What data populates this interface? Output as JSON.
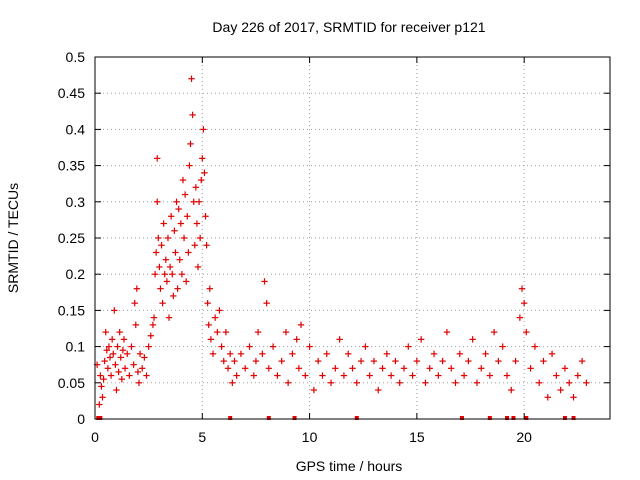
{
  "chart_data": {
    "type": "scatter",
    "title": "Day 226 of 2017, SRMTID for receiver p121",
    "xlabel": "GPS time / hours",
    "ylabel": "SRMTID / TECUs",
    "xlim": [
      0,
      24
    ],
    "ylim": [
      0,
      0.5
    ],
    "xticks": [
      0,
      5,
      10,
      15,
      20
    ],
    "xtick_labels": [
      "0",
      "5",
      "10",
      "15",
      "20"
    ],
    "yticks": [
      0,
      0.05,
      0.1,
      0.15,
      0.2,
      0.25,
      0.3,
      0.35,
      0.4,
      0.45,
      0.5
    ],
    "ytick_labels": [
      "0",
      "0.05",
      "0.1",
      "0.15",
      "0.2",
      "0.25",
      "0.3",
      "0.35",
      "0.4",
      "0.45",
      "0.5"
    ],
    "grid": true,
    "marker": "+",
    "color": "#e00000",
    "series": [
      {
        "name": "SRMTID",
        "points": [
          [
            0.1,
            0.075
          ],
          [
            0.2,
            0.02
          ],
          [
            0.25,
            0.06
          ],
          [
            0.3,
            0.045
          ],
          [
            0.35,
            0.03
          ],
          [
            0.4,
            0.055
          ],
          [
            0.45,
            0.08
          ],
          [
            0.5,
            0.12
          ],
          [
            0.55,
            0.095
          ],
          [
            0.6,
            0.07
          ],
          [
            0.65,
            0.1
          ],
          [
            0.7,
            0.085
          ],
          [
            0.75,
            0.06
          ],
          [
            0.8,
            0.11
          ],
          [
            0.85,
            0.09
          ],
          [
            0.9,
            0.15
          ],
          [
            0.95,
            0.075
          ],
          [
            1.0,
            0.04
          ],
          [
            1.05,
            0.1
          ],
          [
            1.1,
            0.065
          ],
          [
            1.15,
            0.12
          ],
          [
            1.2,
            0.085
          ],
          [
            1.25,
            0.055
          ],
          [
            1.3,
            0.095
          ],
          [
            1.35,
            0.11
          ],
          [
            1.4,
            0.07
          ],
          [
            1.5,
            0.09
          ],
          [
            1.6,
            0.06
          ],
          [
            1.7,
            0.1
          ],
          [
            1.8,
            0.075
          ],
          [
            1.85,
            0.16
          ],
          [
            1.9,
            0.13
          ],
          [
            1.95,
            0.18
          ],
          [
            2.0,
            0.065
          ],
          [
            2.05,
            0.05
          ],
          [
            2.1,
            0.09
          ],
          [
            2.2,
            0.07
          ],
          [
            2.3,
            0.085
          ],
          [
            2.4,
            0.06
          ],
          [
            2.5,
            0.1
          ],
          [
            2.6,
            0.115
          ],
          [
            2.7,
            0.13
          ],
          [
            2.75,
            0.14
          ],
          [
            2.8,
            0.2
          ],
          [
            2.85,
            0.23
          ],
          [
            2.9,
            0.3
          ],
          [
            2.9,
            0.36
          ],
          [
            2.95,
            0.25
          ],
          [
            3.0,
            0.21
          ],
          [
            3.05,
            0.18
          ],
          [
            3.1,
            0.24
          ],
          [
            3.15,
            0.16
          ],
          [
            3.2,
            0.27
          ],
          [
            3.25,
            0.2
          ],
          [
            3.3,
            0.22
          ],
          [
            3.35,
            0.19
          ],
          [
            3.4,
            0.25
          ],
          [
            3.45,
            0.14
          ],
          [
            3.5,
            0.21
          ],
          [
            3.55,
            0.28
          ],
          [
            3.6,
            0.2
          ],
          [
            3.65,
            0.17
          ],
          [
            3.7,
            0.26
          ],
          [
            3.75,
            0.23
          ],
          [
            3.8,
            0.3
          ],
          [
            3.85,
            0.18
          ],
          [
            3.9,
            0.29
          ],
          [
            3.95,
            0.22
          ],
          [
            4.0,
            0.27
          ],
          [
            4.05,
            0.2
          ],
          [
            4.1,
            0.33
          ],
          [
            4.15,
            0.25
          ],
          [
            4.2,
            0.31
          ],
          [
            4.25,
            0.19
          ],
          [
            4.3,
            0.28
          ],
          [
            4.35,
            0.23
          ],
          [
            4.4,
            0.35
          ],
          [
            4.45,
            0.38
          ],
          [
            4.5,
            0.47
          ],
          [
            4.55,
            0.42
          ],
          [
            4.6,
            0.3
          ],
          [
            4.65,
            0.24
          ],
          [
            4.7,
            0.32
          ],
          [
            4.75,
            0.27
          ],
          [
            4.8,
            0.21
          ],
          [
            4.85,
            0.3
          ],
          [
            4.9,
            0.25
          ],
          [
            4.95,
            0.33
          ],
          [
            5.0,
            0.36
          ],
          [
            5.05,
            0.4
          ],
          [
            5.1,
            0.34
          ],
          [
            5.15,
            0.28
          ],
          [
            5.2,
            0.24
          ],
          [
            5.25,
            0.16
          ],
          [
            5.3,
            0.13
          ],
          [
            5.35,
            0.18
          ],
          [
            5.4,
            0.11
          ],
          [
            5.5,
            0.09
          ],
          [
            5.6,
            0.14
          ],
          [
            5.7,
            0.12
          ],
          [
            5.8,
            0.15
          ],
          [
            5.9,
            0.1
          ],
          [
            6.0,
            0.08
          ],
          [
            6.1,
            0.12
          ],
          [
            6.2,
            0.07
          ],
          [
            6.3,
            0.09
          ],
          [
            6.4,
            0.05
          ],
          [
            6.5,
            0.08
          ],
          [
            6.6,
            0.06
          ],
          [
            6.8,
            0.09
          ],
          [
            7.0,
            0.07
          ],
          [
            7.2,
            0.1
          ],
          [
            7.4,
            0.06
          ],
          [
            7.5,
            0.08
          ],
          [
            7.6,
            0.12
          ],
          [
            7.8,
            0.09
          ],
          [
            7.9,
            0.19
          ],
          [
            8.0,
            0.16
          ],
          [
            8.1,
            0.07
          ],
          [
            8.3,
            0.1
          ],
          [
            8.5,
            0.06
          ],
          [
            8.7,
            0.08
          ],
          [
            8.9,
            0.12
          ],
          [
            9.0,
            0.05
          ],
          [
            9.2,
            0.09
          ],
          [
            9.4,
            0.11
          ],
          [
            9.5,
            0.07
          ],
          [
            9.6,
            0.13
          ],
          [
            9.8,
            0.06
          ],
          [
            10.0,
            0.1
          ],
          [
            10.2,
            0.04
          ],
          [
            10.4,
            0.08
          ],
          [
            10.6,
            0.06
          ],
          [
            10.8,
            0.09
          ],
          [
            11.0,
            0.05
          ],
          [
            11.2,
            0.07
          ],
          [
            11.4,
            0.11
          ],
          [
            11.6,
            0.06
          ],
          [
            11.8,
            0.09
          ],
          [
            12.0,
            0.07
          ],
          [
            12.2,
            0.05
          ],
          [
            12.4,
            0.08
          ],
          [
            12.6,
            0.1
          ],
          [
            12.8,
            0.06
          ],
          [
            13.0,
            0.08
          ],
          [
            13.2,
            0.04
          ],
          [
            13.4,
            0.07
          ],
          [
            13.6,
            0.09
          ],
          [
            13.8,
            0.06
          ],
          [
            14.0,
            0.08
          ],
          [
            14.2,
            0.05
          ],
          [
            14.4,
            0.07
          ],
          [
            14.6,
            0.1
          ],
          [
            14.8,
            0.06
          ],
          [
            15.0,
            0.08
          ],
          [
            15.2,
            0.11
          ],
          [
            15.4,
            0.05
          ],
          [
            15.6,
            0.07
          ],
          [
            15.8,
            0.09
          ],
          [
            16.0,
            0.06
          ],
          [
            16.2,
            0.08
          ],
          [
            16.4,
            0.12
          ],
          [
            16.6,
            0.07
          ],
          [
            16.8,
            0.05
          ],
          [
            17.0,
            0.09
          ],
          [
            17.2,
            0.06
          ],
          [
            17.4,
            0.08
          ],
          [
            17.6,
            0.11
          ],
          [
            17.8,
            0.05
          ],
          [
            18.0,
            0.07
          ],
          [
            18.2,
            0.09
          ],
          [
            18.4,
            0.06
          ],
          [
            18.6,
            0.12
          ],
          [
            18.8,
            0.08
          ],
          [
            19.0,
            0.1
          ],
          [
            19.2,
            0.06
          ],
          [
            19.4,
            0.04
          ],
          [
            19.6,
            0.08
          ],
          [
            19.8,
            0.14
          ],
          [
            19.9,
            0.18
          ],
          [
            20.0,
            0.16
          ],
          [
            20.1,
            0.12
          ],
          [
            20.3,
            0.07
          ],
          [
            20.5,
            0.1
          ],
          [
            20.7,
            0.05
          ],
          [
            20.9,
            0.08
          ],
          [
            21.1,
            0.03
          ],
          [
            21.3,
            0.09
          ],
          [
            21.5,
            0.06
          ],
          [
            21.7,
            0.04
          ],
          [
            21.9,
            0.07
          ],
          [
            22.1,
            0.05
          ],
          [
            22.3,
            0.03
          ],
          [
            22.5,
            0.06
          ],
          [
            22.7,
            0.08
          ],
          [
            22.9,
            0.05
          ]
        ]
      }
    ],
    "axis_markers": [
      0.15,
      0.25,
      6.3,
      8.1,
      9.3,
      12.2,
      17.1,
      18.4,
      19.2,
      19.5,
      20.1,
      21.9,
      22.3
    ]
  }
}
